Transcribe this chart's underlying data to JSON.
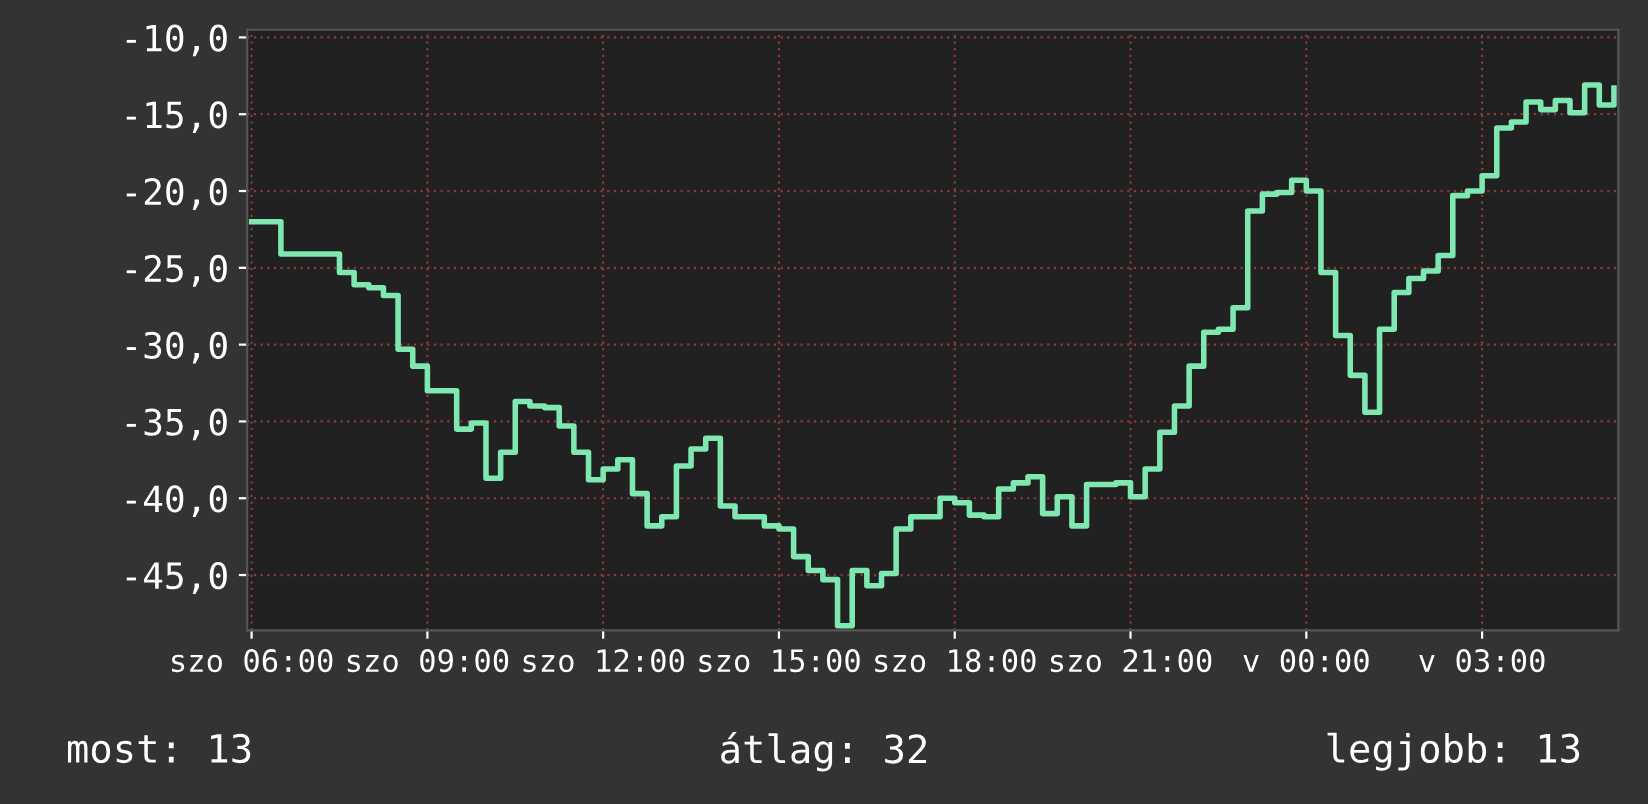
{
  "chart_data": {
    "type": "step",
    "categories": [
      "szo 06:00",
      null,
      null,
      null,
      null,
      null,
      null,
      null,
      null,
      null,
      null,
      null,
      "szo 09:00",
      null,
      null,
      null,
      null,
      null,
      null,
      null,
      null,
      null,
      null,
      null,
      "szo 12:00",
      null,
      null,
      null,
      null,
      null,
      null,
      null,
      null,
      null,
      null,
      null,
      "szo 15:00",
      null,
      null,
      null,
      null,
      null,
      null,
      null,
      null,
      null,
      null,
      null,
      "szo 18:00",
      null,
      null,
      null,
      null,
      null,
      null,
      null,
      null,
      null,
      null,
      null,
      "szo 21:00",
      null,
      null,
      null,
      null,
      null,
      null,
      null,
      null,
      null,
      null,
      null,
      "v 00:00",
      null,
      null,
      null,
      null,
      null,
      null,
      null,
      null,
      null,
      null,
      null,
      "v 03:00",
      null,
      null,
      null,
      null,
      null,
      null,
      null,
      null,
      null
    ],
    "series": [
      {
        "color": "#7ee8b0",
        "values": [
          -22.0,
          -22.0,
          -24.1,
          -24.1,
          -24.1,
          -24.1,
          -25.3,
          -26.1,
          -26.3,
          -26.8,
          -30.3,
          -31.4,
          -33.0,
          -33.0,
          -35.5,
          -35.1,
          -38.7,
          -37.0,
          -33.7,
          -34.0,
          -34.1,
          -35.3,
          -37.0,
          -38.8,
          -38.1,
          -37.5,
          -39.7,
          -41.8,
          -41.2,
          -37.9,
          -36.8,
          -36.1,
          -40.5,
          -41.2,
          -41.2,
          -41.8,
          -42.0,
          -43.8,
          -44.7,
          -45.3,
          -48.3,
          -44.7,
          -45.7,
          -44.9,
          -42.0,
          -41.2,
          -41.2,
          -40.0,
          -40.3,
          -41.1,
          -41.2,
          -39.4,
          -39.0,
          -38.6,
          -41.0,
          -39.9,
          -41.8,
          -39.1,
          -39.1,
          -39.0,
          -39.9,
          -38.1,
          -35.7,
          -34.0,
          -31.4,
          -29.2,
          -29.0,
          -27.6,
          -21.3,
          -20.2,
          -20.1,
          -19.3,
          -20.0,
          -25.3,
          -29.4,
          -32.0,
          -34.4,
          -29.0,
          -26.6,
          -25.7,
          -25.2,
          -24.2,
          -20.3,
          -20.0,
          -19.0,
          -15.9,
          -15.5,
          -14.2,
          -14.7,
          -14.1,
          -14.9,
          -13.1,
          -14.4,
          -13.3
        ]
      }
    ],
    "ylim": [
      -48.6,
      -9.5
    ],
    "yticks": [
      {
        "value": -45,
        "label": "-45,0"
      },
      {
        "value": -40,
        "label": "-40,0"
      },
      {
        "value": -35,
        "label": "-35,0"
      },
      {
        "value": -30,
        "label": "-30,0"
      },
      {
        "value": -25,
        "label": "-25,0"
      },
      {
        "value": -20,
        "label": "-20,0"
      },
      {
        "value": -15,
        "label": "-15,0"
      },
      {
        "value": -10,
        "label": "-10,0"
      }
    ],
    "grid": true,
    "annotations": [
      "most: 13",
      "átlag: 32",
      "legjobb: 13"
    ]
  }
}
